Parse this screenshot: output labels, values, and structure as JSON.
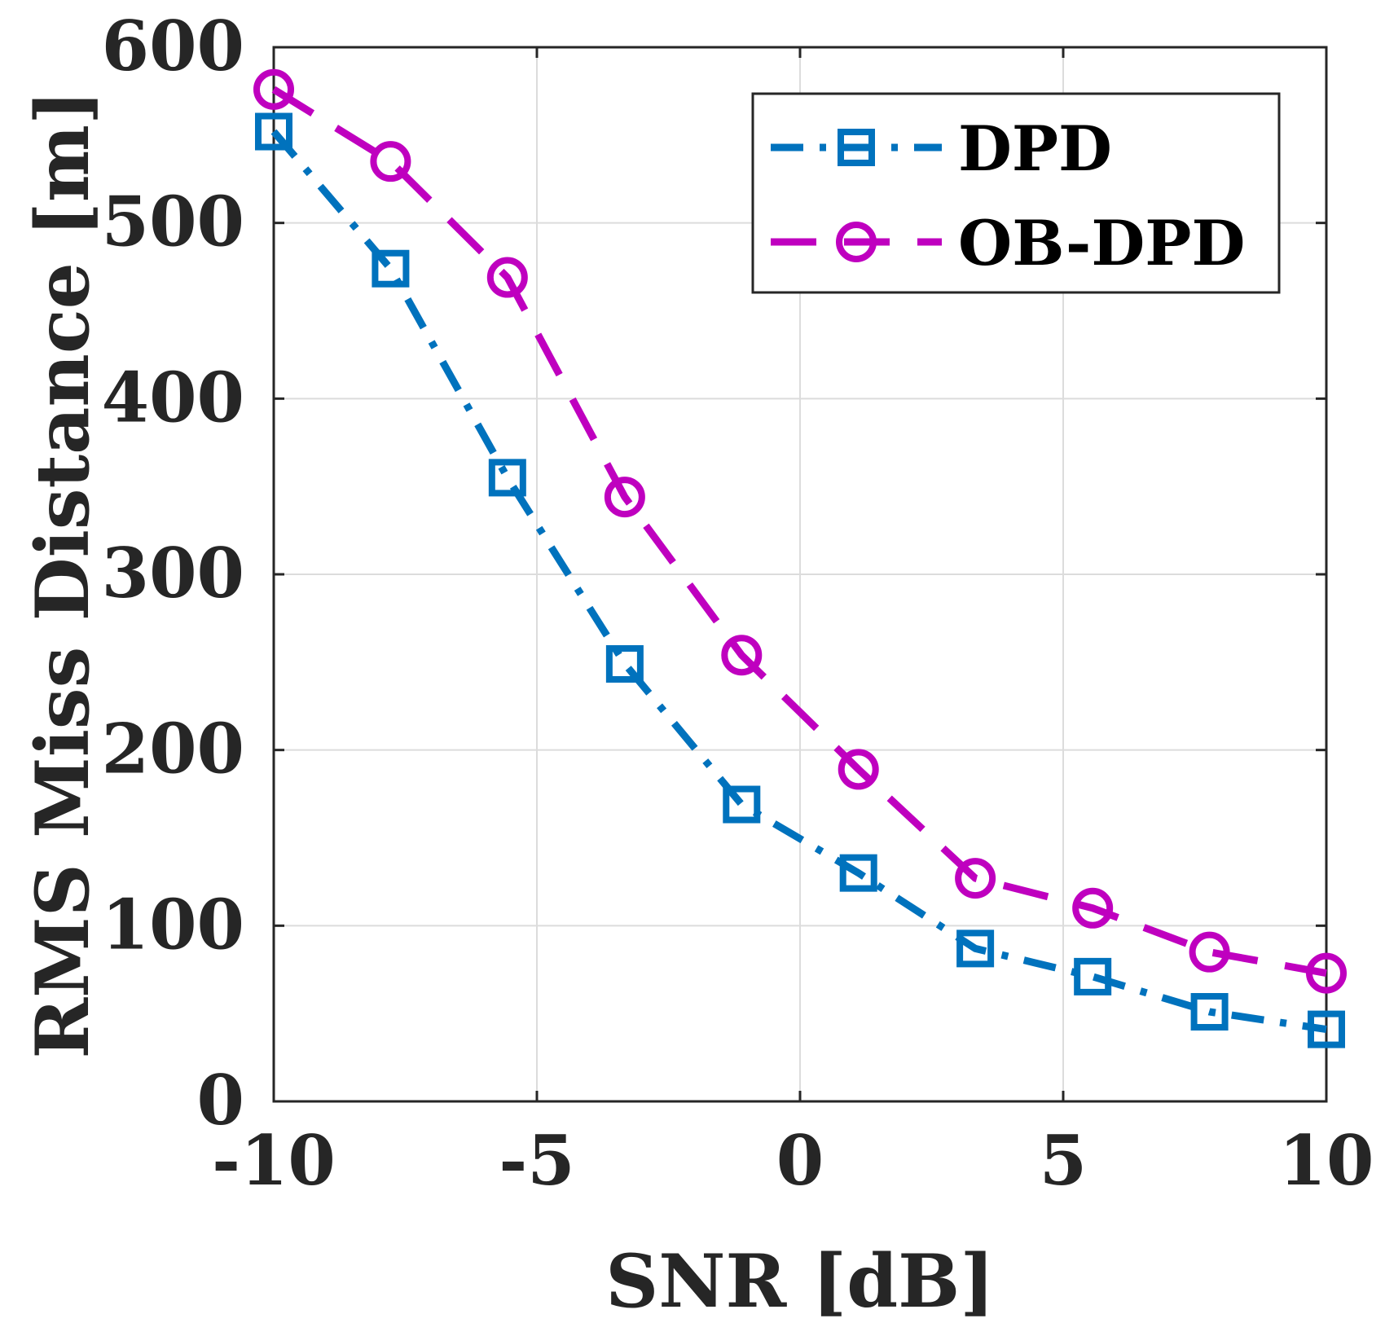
{
  "chart_data": {
    "type": "line",
    "title": "",
    "xlabel": "SNR [dB]",
    "ylabel": "RMS Miss Distance [m]",
    "xlim": [
      -10,
      10
    ],
    "ylim": [
      0,
      600
    ],
    "xticks": [
      -10,
      -5,
      0,
      5,
      10
    ],
    "yticks": [
      0,
      100,
      200,
      300,
      400,
      500,
      600
    ],
    "xtick_labels": [
      "-10",
      "-5",
      "0",
      "5",
      "10"
    ],
    "ytick_labels": [
      "0",
      "100",
      "200",
      "300",
      "400",
      "500",
      "600"
    ],
    "grid": true,
    "legend_position": "top-right",
    "x": [
      -10,
      -7.78,
      -5.56,
      -3.33,
      -1.11,
      1.11,
      3.33,
      5.56,
      7.78,
      10
    ],
    "series": [
      {
        "name": "DPD",
        "color": "#0072BD",
        "line_style": "dash-dot",
        "marker": "square",
        "values": [
          552,
          474,
          355,
          249,
          169,
          130,
          87,
          71,
          51,
          41
        ]
      },
      {
        "name": "OB-DPD",
        "color": "#BF00BF",
        "line_style": "dashed",
        "marker": "circle",
        "values": [
          576,
          535,
          469,
          344,
          254,
          189,
          127,
          110,
          85,
          73
        ]
      }
    ]
  }
}
